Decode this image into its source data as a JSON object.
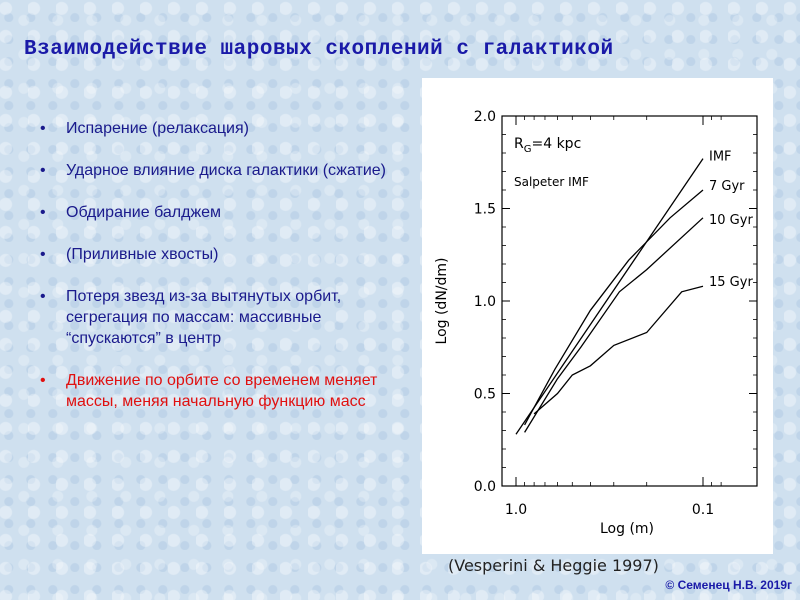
{
  "slide": {
    "title": "Взаимодействие шаровых скоплений с галактикой",
    "citation": "(Vesperini & Heggie 1997)",
    "copyright": "© Семенец Н.В. 2019г",
    "bullets": [
      {
        "text": "Испарение (релаксация)",
        "color": "#1a1a8c"
      },
      {
        "text": "Ударное влияние диска галактики (сжатие)",
        "color": "#1a1a8c"
      },
      {
        "text": "Обдирание балджем",
        "color": "#1a1a8c"
      },
      {
        "text": "(Приливные хвосты)",
        "color": "#1a1a8c"
      },
      {
        "text": "Потеря звезд из-за вытянутых орбит, сегрегация по массам: массивные “спускаются” в центр",
        "color": "#1a1a8c"
      },
      {
        "text": "Движение по орбите со временем меняет массы, меняя начальную функцию масс",
        "color": "#e01010"
      }
    ]
  },
  "chart_data": {
    "type": "line",
    "annotation_main": "R",
    "annotation_sub": "G",
    "annotation_rest": "=4 kpc",
    "annotation2": "Salpeter IMF",
    "xlabel": "Log (m)",
    "ylabel": "Log (dN/dm)",
    "x_tick_labels": [
      "1.0",
      "0.1"
    ],
    "y_tick_labels": [
      "0.0",
      "0.5",
      "1.0",
      "1.5",
      "2.0"
    ],
    "ylim": [
      0,
      2.0
    ],
    "x_axis": "mass, log scale, decreasing to the right",
    "series": [
      {
        "name": "IMF",
        "points": [
          [
            1.0,
            0.28
          ],
          [
            0.1,
            1.77
          ]
        ]
      },
      {
        "name": "7 Gyr",
        "points": [
          [
            0.9,
            0.33
          ],
          [
            0.62,
            0.63
          ],
          [
            0.4,
            0.95
          ],
          [
            0.25,
            1.22
          ],
          [
            0.15,
            1.45
          ],
          [
            0.1,
            1.6
          ]
        ]
      },
      {
        "name": "10 Gyr",
        "points": [
          [
            0.9,
            0.29
          ],
          [
            0.6,
            0.58
          ],
          [
            0.45,
            0.75
          ],
          [
            0.28,
            1.05
          ],
          [
            0.2,
            1.17
          ],
          [
            0.1,
            1.45
          ]
        ]
      },
      {
        "name": "15 Gyr",
        "points": [
          [
            0.8,
            0.39
          ],
          [
            0.6,
            0.5
          ],
          [
            0.5,
            0.6
          ],
          [
            0.4,
            0.65
          ],
          [
            0.3,
            0.76
          ],
          [
            0.2,
            0.83
          ],
          [
            0.13,
            1.05
          ],
          [
            0.1,
            1.08
          ]
        ]
      }
    ],
    "grid": false,
    "legend": "labels at line ends"
  }
}
